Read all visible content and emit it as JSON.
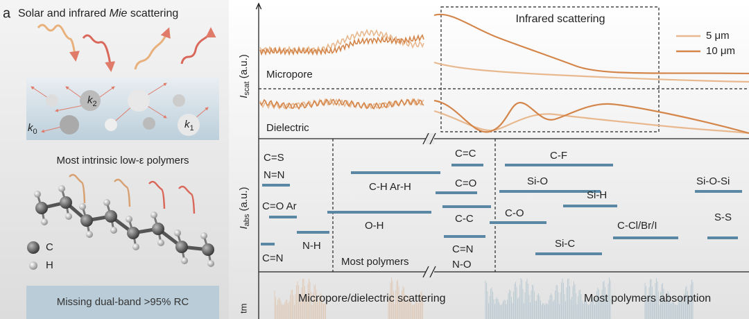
{
  "panel_label": "a",
  "left": {
    "title": [
      "Solar and infrared ",
      "Mie",
      " scattering"
    ],
    "wavevectors": [
      {
        "base": "k",
        "sub": "2"
      },
      {
        "base": "k",
        "sub": "0"
      },
      {
        "base": "k",
        "sub": "1"
      }
    ],
    "polymers_caption": "Most intrinsic low-ε polymers",
    "atoms": [
      "C",
      "H"
    ],
    "footer": "Missing dual-band >95% RC"
  },
  "right": {
    "scattering_axis": {
      "base": "I",
      "sub": "scat",
      "unit": " (a.u.)"
    },
    "absorption_axis": {
      "base": "I",
      "sub": "abs",
      "unit": " (a.u.)"
    },
    "micropore": "Micropore",
    "dielectric": "Dielectric",
    "infrared_box": "Infrared scattering",
    "legend": [
      "5 μm",
      "10 μm"
    ],
    "bonds": [
      "C=S",
      "N=N",
      "C=O Ar",
      "N-H",
      "C=N",
      "C-H Ar-H",
      "O-H",
      "C=C",
      "C=O",
      "C-C",
      "C=N",
      "N-O",
      "C-F",
      "Si-O",
      "Si-H",
      "C-O",
      "C-Cl/Br/I",
      "Si-C",
      "Si-O-Si",
      "S-S"
    ],
    "most_polymers": "Most polymers",
    "bottom_left": "Micropore/dielectric scattering",
    "bottom_right": "Most polymers absorption",
    "cut_label": "tm"
  }
}
